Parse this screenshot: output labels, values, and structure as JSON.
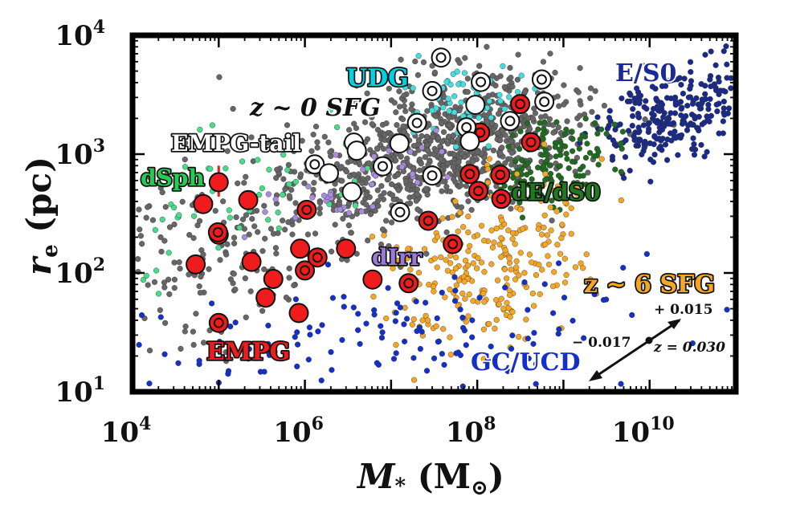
{
  "chart_data": {
    "type": "scatter",
    "xscale": "log",
    "yscale": "log",
    "xlim": [
      10000,
      100000000000
    ],
    "ylim": [
      10,
      10000
    ],
    "xlabel": "M_* (M_⊙)",
    "ylabel": "r_e (pc)",
    "x_tick_labels": [
      {
        "base": "10",
        "exp": "4",
        "value": 10000
      },
      {
        "base": "10",
        "exp": "6",
        "value": 1000000
      },
      {
        "base": "10",
        "exp": "8",
        "value": 100000000
      },
      {
        "base": "10",
        "exp": "10",
        "value": 10000000000
      }
    ],
    "y_tick_labels": [
      {
        "base": "10",
        "exp": "1",
        "value": 10
      },
      {
        "base": "10",
        "exp": "2",
        "value": 100
      },
      {
        "base": "10",
        "exp": "3",
        "value": 1000
      },
      {
        "base": "10",
        "exp": "4",
        "value": 10000
      }
    ],
    "annotations": [
      {
        "text": "UDG",
        "color": "#00d2e0",
        "outline": "#111111"
      },
      {
        "text": "E/S0",
        "color": "#1a2a9a",
        "outline": "#ffffff"
      },
      {
        "text": "z ~ 0 SFG",
        "color": "#111111",
        "outline": "#ffffff"
      },
      {
        "text": "EMPG-tail",
        "color": "#ffffff",
        "outline": "#111111"
      },
      {
        "text": "dSph",
        "color": "#22cc55",
        "outline": "#111111"
      },
      {
        "text": "dE/dS0",
        "color": "#1f7a1f",
        "outline": "#111111"
      },
      {
        "text": "dIrr",
        "color": "#9a7ad8",
        "outline": "#111111"
      },
      {
        "text": "z ~ 6 SFG",
        "color": "#f5a623",
        "outline": "#111111"
      },
      {
        "text": "EMPG",
        "color": "#ee1c1c",
        "outline": "#111111"
      },
      {
        "text": "GC/UCD",
        "color": "#1530c8",
        "outline": "#ffffff"
      }
    ],
    "redshift_arrow": {
      "plus_label": "+ 0.015",
      "minus_label": "− 0.017",
      "z_label": "z = 0.030"
    },
    "colors": {
      "empg": "#ee1c1c",
      "empg_tail": "#ffffff",
      "sfg0": "#666666",
      "udg": "#44dddd",
      "es0": "#1a2a8a",
      "dsph": "#44dd88",
      "de_ds0": "#1f6b1f",
      "dirr": "#a98be0",
      "sfg6": "#f5a623",
      "gc_ucd": "#1530c8"
    },
    "series": [
      {
        "name": "EMPG",
        "marker": "filled circle (red), some with inner ring",
        "points": [
          {
            "x": 66000,
            "y": 380,
            "ring": false
          },
          {
            "x": 100000,
            "y": 580,
            "ring": false,
            "yerr": [
              450,
              800
            ]
          },
          {
            "x": 100000,
            "y": 210,
            "ring": true
          },
          {
            "x": 98000,
            "y": 220,
            "ring": true
          },
          {
            "x": 54000,
            "y": 118,
            "ring": false
          },
          {
            "x": 100000,
            "y": 38,
            "ring": true
          },
          {
            "x": 220000,
            "y": 410,
            "ring": false
          },
          {
            "x": 240000,
            "y": 124,
            "ring": false
          },
          {
            "x": 350000,
            "y": 62,
            "ring": false
          },
          {
            "x": 430000,
            "y": 89,
            "ring": false
          },
          {
            "x": 880000,
            "y": 160,
            "ring": false
          },
          {
            "x": 850000,
            "y": 46,
            "ring": false
          },
          {
            "x": 1000000,
            "y": 105,
            "ring": true
          },
          {
            "x": 1050000,
            "y": 340,
            "ring": true
          },
          {
            "x": 1400000,
            "y": 135,
            "ring": true
          },
          {
            "x": 3000000,
            "y": 160,
            "ring": false
          },
          {
            "x": 6100000,
            "y": 88,
            "ring": false
          },
          {
            "x": 16000000,
            "y": 82,
            "ring": true
          },
          {
            "x": 27000000,
            "y": 275,
            "ring": true
          },
          {
            "x": 52000000,
            "y": 175,
            "ring": true
          },
          {
            "x": 82000000,
            "y": 680,
            "ring": true
          },
          {
            "x": 103000000,
            "y": 490,
            "ring": true
          },
          {
            "x": 108000000,
            "y": 1520,
            "ring": true
          },
          {
            "x": 185000000,
            "y": 670,
            "ring": true
          },
          {
            "x": 190000000,
            "y": 420,
            "ring": true
          },
          {
            "x": 315000000,
            "y": 2640,
            "ring": true
          },
          {
            "x": 420000000,
            "y": 1260,
            "ring": true
          }
        ]
      },
      {
        "name": "EMPG-tail",
        "marker": "white circle, some with inner ring",
        "points": [
          {
            "x": 1300000,
            "y": 820,
            "ring": true
          },
          {
            "x": 1900000,
            "y": 690,
            "ring": false
          },
          {
            "x": 3500000,
            "y": 480,
            "ring": false
          },
          {
            "x": 3700000,
            "y": 1250,
            "ring": false
          },
          {
            "x": 4000000,
            "y": 1070,
            "ring": false
          },
          {
            "x": 8000000,
            "y": 790,
            "ring": true
          },
          {
            "x": 12500000,
            "y": 1230,
            "ring": false
          },
          {
            "x": 12700000,
            "y": 325,
            "ring": true
          },
          {
            "x": 20000000,
            "y": 1830,
            "ring": true
          },
          {
            "x": 30000000,
            "y": 660,
            "ring": true
          },
          {
            "x": 30000000,
            "y": 3400,
            "ring": true
          },
          {
            "x": 38000000,
            "y": 6500,
            "ring": true
          },
          {
            "x": 75000000,
            "y": 1680,
            "ring": true
          },
          {
            "x": 82000000,
            "y": 1280,
            "ring": false
          },
          {
            "x": 95000000,
            "y": 2600,
            "ring": false
          },
          {
            "x": 110000000,
            "y": 4050,
            "ring": true
          },
          {
            "x": 240000000,
            "y": 1900,
            "ring": true
          },
          {
            "x": 560000000,
            "y": 4250,
            "ring": true
          },
          {
            "x": 600000000,
            "y": 2760,
            "ring": true
          }
        ]
      }
    ]
  }
}
